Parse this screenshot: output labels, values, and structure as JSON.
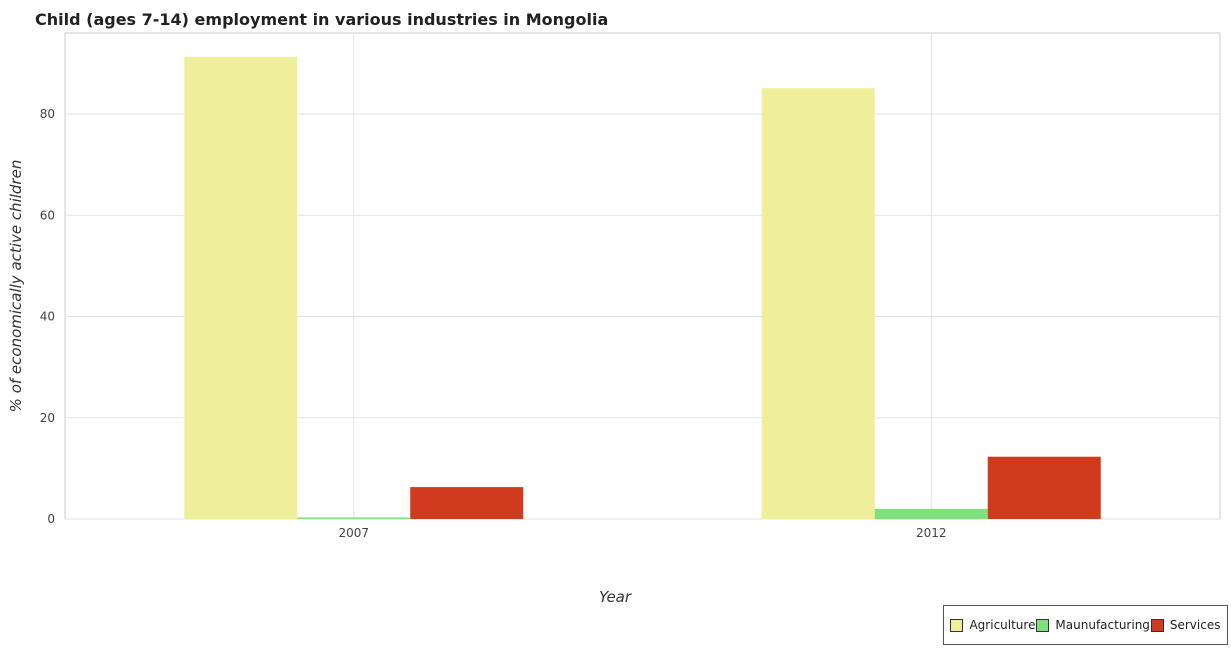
{
  "chart_data": {
    "type": "bar",
    "title": "Child (ages 7-14) employment in various industries in Mongolia",
    "xlabel": "Year",
    "ylabel": "% of economically active children",
    "categories": [
      "2007",
      "2012"
    ],
    "series": [
      {
        "name": "Agriculture",
        "color": "#efef9b",
        "values": [
          91.3,
          85.1
        ]
      },
      {
        "name": "Maunufacturing",
        "color": "#7fe07f",
        "values": [
          0.3,
          2.0
        ]
      },
      {
        "name": "Services",
        "color": "#d03a1d",
        "values": [
          6.3,
          12.3
        ]
      }
    ],
    "yticks": [
      0,
      20,
      40,
      60,
      80
    ],
    "ylim": [
      0,
      96
    ],
    "grid": true,
    "legend_position": "bottom-right"
  }
}
